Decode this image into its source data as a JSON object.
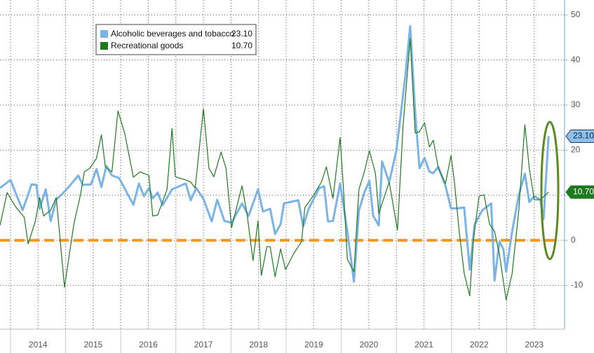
{
  "chart_data": {
    "type": "line",
    "xlim": [
      2013.81,
      2024.05
    ],
    "ylim": [
      -19.7,
      53.3
    ],
    "yticks": [
      -10,
      0,
      10,
      20,
      30,
      40,
      50
    ],
    "xticks": [
      {
        "value": 2014.5,
        "label": "2014"
      },
      {
        "value": 2015.5,
        "label": "2015"
      },
      {
        "value": 2016.5,
        "label": "2016"
      },
      {
        "value": 2017.5,
        "label": "2017"
      },
      {
        "value": 2018.5,
        "label": "2018"
      },
      {
        "value": 2019.5,
        "label": "2019"
      },
      {
        "value": 2020.5,
        "label": "2020"
      },
      {
        "value": 2021.5,
        "label": "2021"
      },
      {
        "value": 2022.5,
        "label": "2022"
      },
      {
        "value": 2023.5,
        "label": "2023"
      }
    ],
    "xgrid": [
      2014,
      2014.5,
      2015,
      2015.5,
      2016,
      2016.5,
      2017,
      2017.5,
      2018,
      2018.5,
      2019,
      2019.5,
      2020,
      2020.5,
      2021,
      2021.5,
      2022,
      2022.5,
      2023,
      2023.5
    ],
    "grid": true,
    "reference_line": {
      "value": 0,
      "color": "#f39a1e"
    },
    "series": [
      {
        "name": "Alcoholic beverages and tobacco",
        "color": "#7ab4e6",
        "last_label": "23.10",
        "x": [
          2013.81,
          2014.0,
          2014.22,
          2014.32,
          2014.38,
          2014.47,
          2014.53,
          2014.64,
          2014.73,
          2014.83,
          2015.02,
          2015.23,
          2015.31,
          2015.46,
          2015.56,
          2015.65,
          2015.74,
          2015.84,
          2015.97,
          2016.23,
          2016.33,
          2016.42,
          2016.51,
          2016.58,
          2016.67,
          2016.76,
          2016.93,
          2017.18,
          2017.27,
          2017.37,
          2017.5,
          2017.65,
          2017.75,
          2017.88,
          2018.01,
          2018.2,
          2018.32,
          2018.49,
          2018.58,
          2018.71,
          2018.8,
          2018.9,
          2018.96,
          2019.22,
          2019.31,
          2019.41,
          2019.6,
          2019.69,
          2019.76,
          2019.85,
          2019.98,
          2020.11,
          2020.23,
          2020.32,
          2020.42,
          2020.51,
          2020.58,
          2020.68,
          2020.74,
          2020.87,
          2021.0,
          2021.16,
          2021.25,
          2021.34,
          2021.42,
          2021.51,
          2021.6,
          2021.67,
          2021.76,
          2021.89,
          2021.99,
          2022.1,
          2022.23,
          2022.33,
          2022.42,
          2022.56,
          2022.72,
          2022.78,
          2022.87,
          2022.94,
          2022.99,
          2023.1,
          2023.22,
          2023.33,
          2023.41,
          2023.5,
          2023.61,
          2023.67,
          2023.76
        ],
        "values": [
          11.6,
          13.4,
          6.7,
          10.1,
          12.4,
          12.3,
          7.0,
          11.3,
          4.3,
          9.0,
          11.3,
          14.4,
          12.3,
          12.4,
          15.8,
          11.8,
          16.5,
          14.4,
          13.8,
          7.9,
          12.6,
          9.8,
          11.6,
          9.3,
          10.6,
          7.8,
          11.3,
          12.6,
          8.9,
          11.6,
          9.2,
          4.2,
          9.0,
          4.3,
          3.9,
          8.2,
          5.4,
          11.3,
          6.4,
          7.0,
          1.4,
          3.6,
          8.2,
          8.9,
          3.1,
          7.0,
          11.6,
          12.0,
          4.2,
          4.3,
          12.6,
          2.0,
          -9.2,
          6.7,
          10.6,
          13.2,
          5.4,
          3.3,
          17.5,
          12.9,
          19.9,
          36.2,
          47.5,
          28.4,
          16.0,
          18.3,
          15.2,
          14.9,
          16.3,
          12.1,
          7.1,
          7.1,
          7.3,
          -6.5,
          3.6,
          6.7,
          8.2,
          -8.9,
          -0.3,
          -1.9,
          -7.0,
          2.0,
          10.1,
          14.8,
          8.5,
          9.8,
          9.0,
          4.7,
          23.1
        ]
      },
      {
        "name": "Recreational goods",
        "color": "#1f7a1f",
        "last_label": "10.70",
        "x": [
          2013.81,
          2013.94,
          2014.09,
          2014.25,
          2014.32,
          2014.45,
          2014.53,
          2014.6,
          2014.73,
          2014.83,
          2014.98,
          2015.15,
          2015.27,
          2015.34,
          2015.44,
          2015.56,
          2015.65,
          2015.72,
          2015.84,
          2015.95,
          2016.07,
          2016.23,
          2016.35,
          2016.51,
          2016.58,
          2016.67,
          2016.84,
          2016.93,
          2016.99,
          2017.18,
          2017.27,
          2017.35,
          2017.5,
          2017.6,
          2017.69,
          2017.82,
          2017.91,
          2018.01,
          2018.2,
          2018.29,
          2018.4,
          2018.49,
          2018.55,
          2018.65,
          2018.71,
          2018.8,
          2018.9,
          2018.99,
          2019.13,
          2019.28,
          2019.34,
          2019.47,
          2019.64,
          2019.73,
          2019.85,
          2019.98,
          2020.04,
          2020.11,
          2020.23,
          2020.32,
          2020.42,
          2020.51,
          2020.62,
          2020.68,
          2020.74,
          2020.87,
          2021.02,
          2021.12,
          2021.25,
          2021.34,
          2021.42,
          2021.51,
          2021.6,
          2021.67,
          2021.76,
          2021.89,
          2021.99,
          2022.05,
          2022.14,
          2022.23,
          2022.33,
          2022.4,
          2022.5,
          2022.59,
          2022.69,
          2022.78,
          2022.87,
          2022.99,
          2023.1,
          2023.22,
          2023.33,
          2023.41,
          2023.5,
          2023.61,
          2023.76
        ],
        "values": [
          3.3,
          10.6,
          7.5,
          5.1,
          -0.8,
          4.2,
          9.5,
          5.4,
          6.7,
          9.5,
          -10.4,
          3.6,
          10.1,
          15.2,
          16.0,
          18.2,
          23.4,
          16.3,
          15.2,
          28.7,
          23.8,
          14.0,
          15.2,
          14.4,
          5.4,
          5.6,
          11.3,
          24.8,
          14.1,
          13.4,
          12.9,
          11.6,
          29.2,
          16.0,
          14.1,
          19.6,
          16.0,
          2.8,
          12.1,
          5.9,
          -4.5,
          4.3,
          -7.8,
          -1.4,
          -1.4,
          -8.1,
          -1.9,
          -6.5,
          -3.1,
          -0.3,
          7.3,
          9.5,
          12.9,
          16.3,
          9.3,
          22.8,
          11.3,
          -4.2,
          -7.0,
          11.3,
          15.2,
          19.9,
          14.8,
          5.9,
          8.2,
          12.9,
          2.3,
          25.3,
          44.7,
          23.8,
          24.1,
          26.1,
          20.7,
          22.2,
          16.0,
          12.6,
          18.8,
          13.2,
          2.0,
          -7.3,
          -12.3,
          0.5,
          9.8,
          10.1,
          3.6,
          2.0,
          -3.1,
          -13.2,
          -7.3,
          6.7,
          25.6,
          16.0,
          9.0,
          9.0,
          10.7
        ]
      }
    ]
  }
}
